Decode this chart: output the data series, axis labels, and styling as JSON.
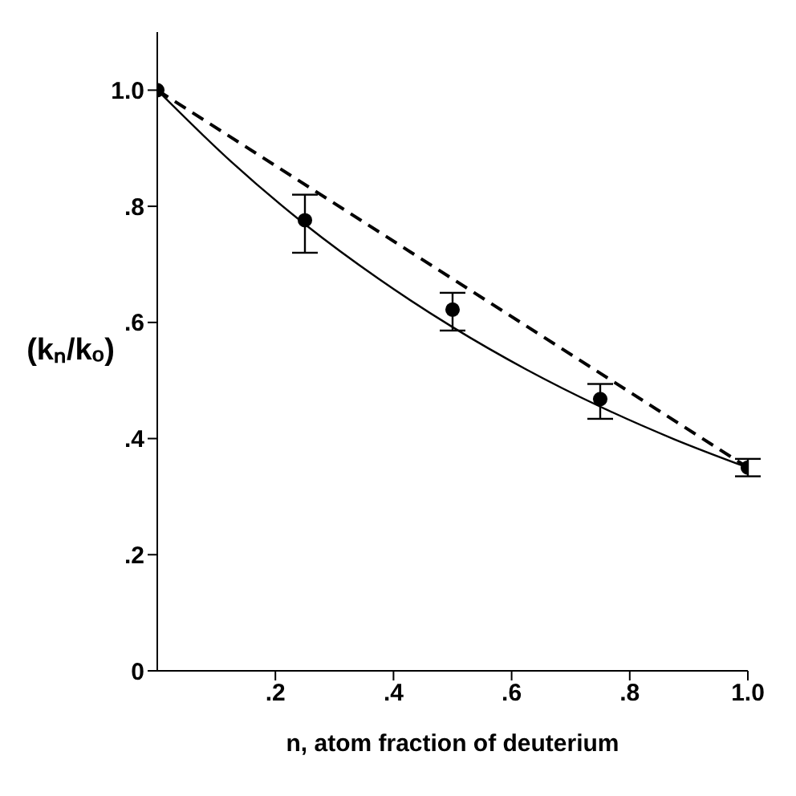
{
  "chart_data": {
    "type": "line",
    "xlabel": "n, atom fraction of deuterium",
    "ylabel": "(kₙ/kₒ)",
    "xlim": [
      0,
      1.0
    ],
    "ylim": [
      0,
      1.1
    ],
    "xticks": [
      {
        "value": 0.2,
        "label": ".2"
      },
      {
        "value": 0.4,
        "label": ".4"
      },
      {
        "value": 0.6,
        "label": ".6"
      },
      {
        "value": 0.8,
        "label": ".8"
      },
      {
        "value": 1.0,
        "label": "1.0"
      }
    ],
    "yticks": [
      0,
      {
        "value": 0.2,
        "label": ".2"
      },
      {
        "value": 0.4,
        "label": ".4"
      },
      {
        "value": 0.6,
        "label": ".6"
      },
      {
        "value": 0.8,
        "label": ".8"
      },
      {
        "value": 1.0,
        "label": "1.0"
      }
    ],
    "grid": false,
    "legend": false,
    "series": [
      {
        "type": "scatter",
        "color": "#000000",
        "marker": "circle",
        "x": [
          0,
          0.25,
          0.5,
          0.75,
          1.0
        ],
        "values": [
          1.0,
          0.776,
          0.622,
          0.468,
          0.35
        ],
        "errors": [
          null,
          [
            0.72,
            0.82
          ],
          [
            0.586,
            0.651
          ],
          [
            0.434,
            0.494
          ],
          [
            0.335,
            0.365
          ]
        ]
      },
      {
        "color": "#000000",
        "line_style": "solid",
        "marker": "none",
        "x": [
          0,
          0.125,
          0.25,
          0.375,
          0.5,
          0.625,
          0.75,
          0.875,
          1.0
        ],
        "values": [
          1.0,
          0.877,
          0.769,
          0.675,
          0.592,
          0.519,
          0.455,
          0.399,
          0.35
        ]
      },
      {
        "color": "#000000",
        "line_style": "dashed",
        "marker": "none",
        "x": [
          0,
          1.0
        ],
        "values": [
          1.0,
          0.35
        ]
      }
    ]
  }
}
